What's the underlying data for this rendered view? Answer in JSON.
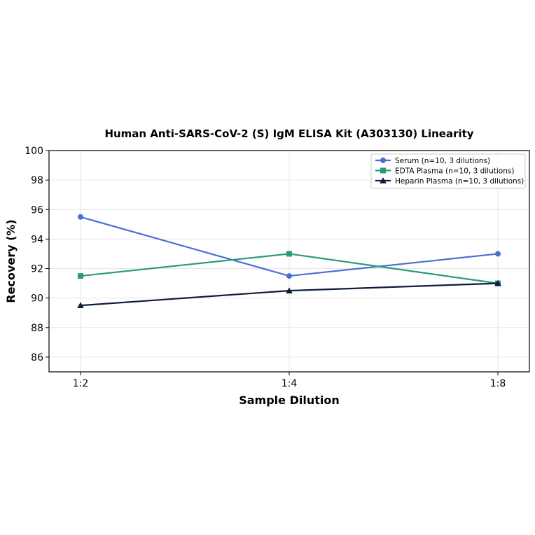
{
  "chart_data": {
    "type": "line",
    "title": "Human Anti-SARS-CoV-2 (S) IgM ELISA Kit (A303130) Linearity",
    "xlabel": "Sample Dilution",
    "ylabel": "Recovery (%)",
    "categories": [
      "1:2",
      "1:4",
      "1:8"
    ],
    "ylim": [
      85,
      100
    ],
    "yticks": [
      86,
      88,
      90,
      92,
      94,
      96,
      98,
      100
    ],
    "grid": true,
    "legend_position": "top-right",
    "series": [
      {
        "name": "Serum (n=10, 3 dilutions)",
        "values": [
          95.5,
          91.5,
          93.0
        ],
        "color": "#4a6fd4",
        "marker": "circle"
      },
      {
        "name": "EDTA Plasma (n=10, 3 dilutions)",
        "values": [
          91.5,
          93.0,
          91.0
        ],
        "color": "#2a9a78",
        "marker": "square"
      },
      {
        "name": "Heparin Plasma (n=10, 3 dilutions)",
        "values": [
          89.5,
          90.5,
          91.0
        ],
        "color": "#0d1b3e",
        "marker": "triangle"
      }
    ]
  }
}
